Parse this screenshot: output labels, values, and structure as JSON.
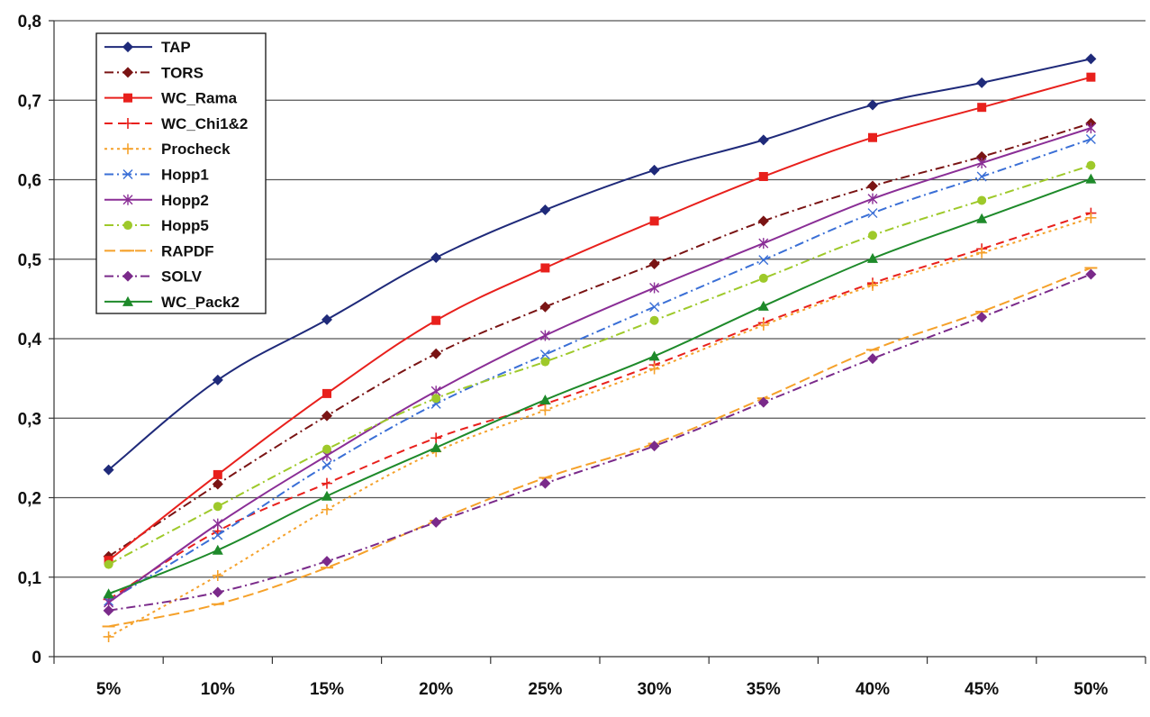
{
  "chart_data": {
    "type": "line",
    "categories": [
      "5%",
      "10%",
      "15%",
      "20%",
      "25%",
      "30%",
      "35%",
      "40%",
      "45%",
      "50%"
    ],
    "ylim": [
      0,
      0.8
    ],
    "yticks": [
      0,
      0.1,
      0.2,
      0.3,
      0.4,
      0.5,
      0.6,
      0.7,
      0.8
    ],
    "ytick_labels": [
      "0",
      "0,1",
      "0,2",
      "0,3",
      "0,4",
      "0,5",
      "0,6",
      "0,7",
      "0,8"
    ],
    "grid": true,
    "legend_position": "top-left",
    "series": [
      {
        "name": "TAP",
        "color": "#1f2a7a",
        "dash": "",
        "marker": "diamond",
        "values": [
          0.235,
          0.348,
          0.424,
          0.502,
          0.562,
          0.612,
          0.65,
          0.694,
          0.722,
          0.752
        ]
      },
      {
        "name": "TORS",
        "color": "#7a1414",
        "dash": "10,4,2,4",
        "marker": "diamond",
        "values": [
          0.126,
          0.217,
          0.303,
          0.381,
          0.44,
          0.494,
          0.548,
          0.592,
          0.629,
          0.671
        ]
      },
      {
        "name": "WC_Rama",
        "color": "#e8201c",
        "dash": "",
        "marker": "square",
        "values": [
          0.121,
          0.229,
          0.331,
          0.423,
          0.489,
          0.548,
          0.604,
          0.653,
          0.691,
          0.729
        ]
      },
      {
        "name": "WC_Chi1&2",
        "color": "#e8201c",
        "dash": "9,6",
        "marker": "plus",
        "values": [
          0.072,
          0.158,
          0.218,
          0.275,
          0.318,
          0.367,
          0.42,
          0.47,
          0.513,
          0.558
        ]
      },
      {
        "name": "Procheck",
        "color": "#f5a12a",
        "dash": "3,4",
        "marker": "plus",
        "values": [
          0.025,
          0.102,
          0.185,
          0.258,
          0.31,
          0.362,
          0.417,
          0.467,
          0.508,
          0.552
        ]
      },
      {
        "name": "Hopp1",
        "color": "#3a6fd6",
        "dash": "10,4,2,4",
        "marker": "x",
        "values": [
          0.07,
          0.153,
          0.241,
          0.318,
          0.38,
          0.44,
          0.499,
          0.558,
          0.604,
          0.651
        ]
      },
      {
        "name": "Hopp2",
        "color": "#8a2e96",
        "dash": "",
        "marker": "star",
        "values": [
          0.068,
          0.167,
          0.253,
          0.334,
          0.404,
          0.464,
          0.52,
          0.576,
          0.621,
          0.665
        ]
      },
      {
        "name": "Hopp5",
        "color": "#9ec92a",
        "dash": "10,4,2,4",
        "marker": "circle",
        "values": [
          0.116,
          0.189,
          0.261,
          0.325,
          0.371,
          0.423,
          0.476,
          0.53,
          0.574,
          0.618
        ]
      },
      {
        "name": "RAPDF",
        "color": "#f5a12a",
        "dash": "12,5",
        "marker": "dash",
        "values": [
          0.038,
          0.066,
          0.112,
          0.171,
          0.225,
          0.268,
          0.325,
          0.386,
          0.434,
          0.489
        ]
      },
      {
        "name": "SOLV",
        "color": "#7a2a8a",
        "dash": "10,4,2,4",
        "marker": "diamond",
        "values": [
          0.058,
          0.081,
          0.12,
          0.169,
          0.218,
          0.265,
          0.32,
          0.375,
          0.427,
          0.481
        ]
      },
      {
        "name": "WC_Pack2",
        "color": "#1e8a2a",
        "dash": "",
        "marker": "triangle",
        "values": [
          0.079,
          0.134,
          0.202,
          0.263,
          0.323,
          0.378,
          0.441,
          0.501,
          0.551,
          0.601
        ]
      }
    ]
  }
}
